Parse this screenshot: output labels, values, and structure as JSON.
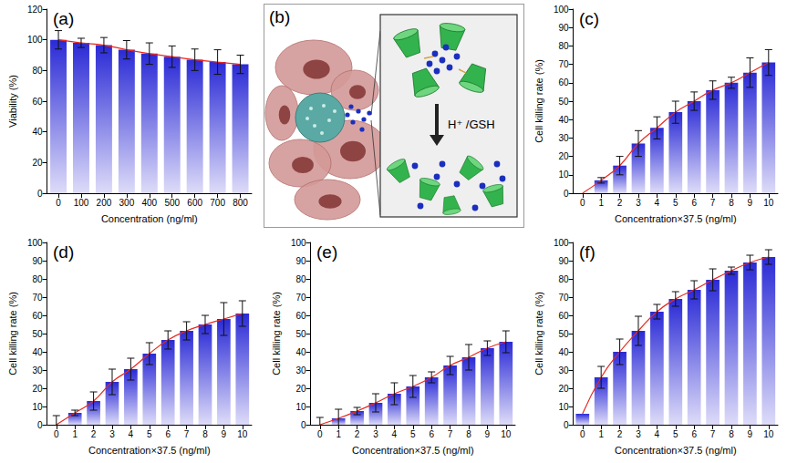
{
  "chart_data": [
    {
      "type": "bar",
      "title": "(a)",
      "x_label": "Concentration (ng/ml)",
      "y_label": "Viability (%)",
      "categories": [
        "0",
        "100",
        "200",
        "300",
        "400",
        "500",
        "600",
        "700",
        "800"
      ],
      "series": [
        {
          "type": "bar",
          "color": "#2a2ad6",
          "values": [
            100,
            98,
            96.5,
            93.5,
            91,
            89,
            87,
            85.5,
            84
          ],
          "errors": [
            6,
            3,
            5,
            6,
            7,
            7,
            7,
            8,
            6
          ]
        },
        {
          "type": "line",
          "color": "#e8281e",
          "values": [
            100,
            98,
            96.5,
            93.5,
            91,
            89,
            87,
            85.5,
            84
          ]
        }
      ],
      "ylim": [
        0,
        120
      ],
      "yticks": [
        0,
        20,
        40,
        60,
        80,
        100,
        120
      ]
    },
    {
      "type": "bar",
      "title": "(c)",
      "x_label": "Concentration×37.5 (ng/ml)",
      "y_label": "Cell killing rate (%)",
      "categories": [
        "0",
        "1",
        "2",
        "3",
        "4",
        "5",
        "6",
        "7",
        "8",
        "9",
        "10"
      ],
      "series": [
        {
          "type": "bar",
          "color": "#2a2ad6",
          "values": [
            0,
            7,
            15,
            27,
            35.5,
            44,
            50,
            56,
            60,
            65.5,
            71
          ],
          "errors": [
            0,
            1.5,
            5,
            7,
            6,
            6,
            5,
            5,
            3,
            8,
            7
          ]
        },
        {
          "type": "line",
          "color": "#e8281e",
          "values": [
            0,
            7,
            15,
            27,
            35.5,
            44,
            50,
            56,
            60,
            65.5,
            71
          ]
        }
      ],
      "ylim": [
        0,
        100
      ],
      "yticks": [
        0,
        10,
        20,
        30,
        40,
        50,
        60,
        70,
        80,
        90,
        100
      ]
    },
    {
      "type": "bar",
      "title": "(d)",
      "x_label": "Concentration×37.5 (ng/ml)",
      "y_label": "Cell killing rate (%)",
      "categories": [
        "0",
        "1",
        "2",
        "3",
        "4",
        "5",
        "6",
        "7",
        "8",
        "9",
        "10"
      ],
      "series": [
        {
          "type": "bar",
          "color": "#2a2ad6",
          "values": [
            0,
            6.5,
            13,
            23.5,
            30.5,
            39,
            46.5,
            51.5,
            55,
            58,
            61
          ],
          "errors": [
            5,
            1.5,
            5,
            7,
            6,
            6,
            5,
            5,
            5,
            9,
            7
          ]
        },
        {
          "type": "line",
          "color": "#e8281e",
          "values": [
            0,
            6.5,
            13,
            23.5,
            30.5,
            39,
            46.5,
            51.5,
            55,
            58,
            61
          ]
        }
      ],
      "ylim": [
        0,
        100
      ],
      "yticks": [
        0,
        10,
        20,
        30,
        40,
        50,
        60,
        70,
        80,
        90,
        100
      ]
    },
    {
      "type": "bar",
      "title": "(e)",
      "x_label": "Concentration×37.5 (ng/ml)",
      "y_label": "Cell killing rate (%)",
      "categories": [
        "0",
        "1",
        "2",
        "3",
        "4",
        "5",
        "6",
        "7",
        "8",
        "9",
        "10"
      ],
      "series": [
        {
          "type": "bar",
          "color": "#2a2ad6",
          "values": [
            0,
            3.5,
            7.5,
            12,
            17,
            21,
            26,
            32.5,
            37,
            42,
            45.5
          ],
          "errors": [
            4,
            5,
            2,
            5,
            6,
            6,
            3,
            5,
            7,
            4,
            6
          ]
        },
        {
          "type": "line",
          "color": "#e8281e",
          "values": [
            0,
            3.5,
            7.5,
            12,
            17,
            21,
            26,
            32.5,
            37,
            42,
            45.5
          ]
        }
      ],
      "ylim": [
        0,
        100
      ],
      "yticks": [
        0,
        10,
        20,
        30,
        40,
        50,
        60,
        70,
        80,
        90,
        100
      ]
    },
    {
      "type": "bar",
      "title": "(f)",
      "x_label": "Concentration×37.5 (ng/ml)",
      "y_label": "Cell killing rate (%)",
      "categories": [
        "0",
        "1",
        "2",
        "3",
        "4",
        "5",
        "6",
        "7",
        "8",
        "9",
        "10"
      ],
      "series": [
        {
          "type": "bar",
          "color": "#2a2ad6",
          "values": [
            6,
            26,
            40,
            51.5,
            62,
            69,
            74,
            79.5,
            84.5,
            89,
            92
          ],
          "errors": [
            0,
            6,
            7,
            8,
            4,
            4,
            5,
            6,
            2,
            4,
            4
          ]
        },
        {
          "type": "line",
          "color": "#e8281e",
          "values": [
            6,
            26,
            40,
            51.5,
            62,
            69,
            74,
            79.5,
            84.5,
            89,
            92
          ]
        }
      ],
      "ylim": [
        0,
        100
      ],
      "yticks": [
        0,
        10,
        20,
        30,
        40,
        50,
        60,
        70,
        80,
        90,
        100
      ]
    }
  ],
  "diagram": {
    "title": "(b)",
    "annotation": "H⁺ /GSH"
  }
}
